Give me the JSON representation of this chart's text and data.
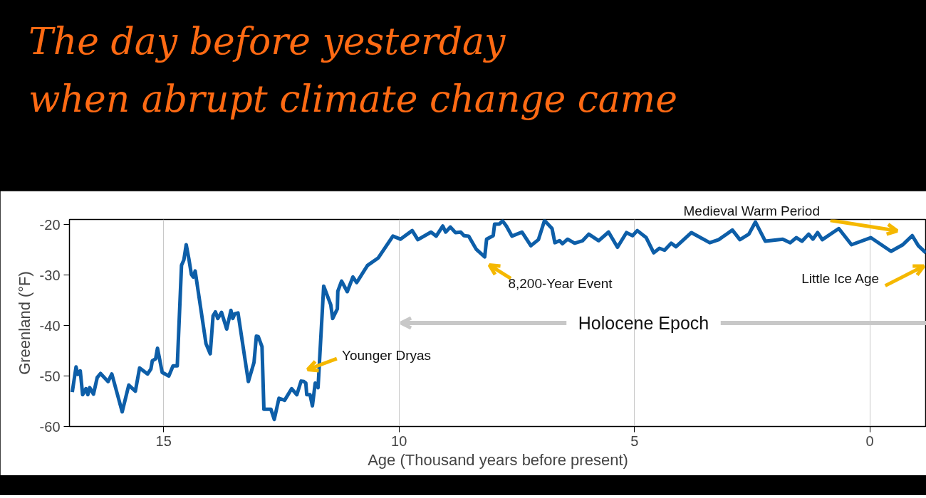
{
  "chart_data": {
    "type": "line",
    "title": "The day before yesterday\nwhen abrupt climate change came",
    "xlabel": "Age (Thousand years before present)",
    "ylabel": "Greenland (°F)",
    "x": [
      16.94,
      16.86,
      16.82,
      16.77,
      16.72,
      16.65,
      16.61,
      16.57,
      16.49,
      16.41,
      16.34,
      16.18,
      16.1,
      15.88,
      15.74,
      15.6,
      15.51,
      15.34,
      15.27,
      15.24,
      15.17,
      15.13,
      15.03,
      14.89,
      14.8,
      14.71,
      14.62,
      14.57,
      14.52,
      14.46,
      14.41,
      14.37,
      14.33,
      14.1,
      14.01,
      13.95,
      13.9,
      13.85,
      13.77,
      13.66,
      13.57,
      13.53,
      13.49,
      13.42,
      13.2,
      13.08,
      13.03,
      12.99,
      12.91,
      12.87,
      12.72,
      12.65,
      12.55,
      12.43,
      12.28,
      12.17,
      12.08,
      12.02,
      11.98,
      11.96,
      11.89,
      11.84,
      11.78,
      11.72,
      11.6,
      11.45,
      11.41,
      11.31,
      11.3,
      11.22,
      11.1,
      10.98,
      10.9,
      10.67,
      10.44,
      10.13,
      9.97,
      9.72,
      9.6,
      9.32,
      9.21,
      9.07,
      9.01,
      8.91,
      8.8,
      8.69,
      8.62,
      8.52,
      8.36,
      8.18,
      8.14,
      8.0,
      7.97,
      7.87,
      7.8,
      7.72,
      7.6,
      7.39,
      7.2,
      7.04,
      6.91,
      6.75,
      6.69,
      6.59,
      6.53,
      6.42,
      6.27,
      6.1,
      5.97,
      5.76,
      5.55,
      5.36,
      5.17,
      5.04,
      4.94,
      4.75,
      4.59,
      4.47,
      4.36,
      4.22,
      4.12,
      3.79,
      3.4,
      3.21,
      2.92,
      2.76,
      2.57,
      2.43,
      2.22,
      1.85,
      1.69,
      1.56,
      1.44,
      1.3,
      1.21,
      1.11,
      1.01,
      0.66,
      0.39,
      -0.02,
      -0.45,
      -0.7,
      -0.9,
      -1.03,
      -1.19
    ],
    "series": [
      {
        "color": "#0d5ea8",
        "values": [
          -53.2,
          -48.2,
          -49.7,
          -49.0,
          -53.7,
          -52.5,
          -53.7,
          -52.3,
          -53.6,
          -50.3,
          -49.5,
          -51.1,
          -49.6,
          -57.1,
          -51.8,
          -53.0,
          -48.4,
          -49.6,
          -48.6,
          -47.0,
          -46.6,
          -44.5,
          -49.3,
          -50.0,
          -48.0,
          -48.0,
          -28.1,
          -27.0,
          -24.0,
          -27.0,
          -29.9,
          -30.4,
          -29.2,
          -43.6,
          -45.6,
          -38.1,
          -37.3,
          -38.6,
          -37.4,
          -40.7,
          -37.0,
          -38.6,
          -37.7,
          -37.5,
          -51.1,
          -47.3,
          -42.1,
          -42.2,
          -44.2,
          -56.6,
          -56.6,
          -58.6,
          -54.4,
          -54.8,
          -52.5,
          -53.7,
          -51.0,
          -51.1,
          -51.4,
          -53.7,
          -53.7,
          -55.9,
          -51.4,
          -52.3,
          -32.2,
          -35.9,
          -38.6,
          -36.7,
          -33.2,
          -31.2,
          -33.3,
          -30.4,
          -31.5,
          -28.1,
          -26.6,
          -22.3,
          -22.9,
          -21.2,
          -23.0,
          -21.5,
          -22.3,
          -20.3,
          -21.5,
          -20.5,
          -21.6,
          -21.5,
          -22.2,
          -22.3,
          -24.9,
          -26.4,
          -22.9,
          -22.2,
          -19.9,
          -19.9,
          -19.3,
          -20.3,
          -22.3,
          -21.5,
          -24.2,
          -23.0,
          -19.2,
          -20.8,
          -23.6,
          -23.2,
          -23.8,
          -22.9,
          -23.7,
          -23.2,
          -21.9,
          -23.2,
          -21.5,
          -24.5,
          -21.6,
          -22.2,
          -21.2,
          -22.6,
          -25.6,
          -24.7,
          -25.1,
          -23.7,
          -24.4,
          -21.6,
          -23.6,
          -23.0,
          -21.1,
          -23.0,
          -21.9,
          -19.5,
          -23.3,
          -22.9,
          -23.6,
          -22.6,
          -23.3,
          -21.9,
          -22.9,
          -21.6,
          -23.0,
          -20.8,
          -24.0,
          -22.6,
          -25.3,
          -24.0,
          -22.2,
          -24.2,
          -25.6
        ]
      }
    ],
    "xlim": [
      17,
      -1.2
    ],
    "xticks": [
      15,
      10,
      5,
      0
    ],
    "ylim": [
      -60,
      -19
    ],
    "yticks": [
      -60,
      -50,
      -40,
      -30,
      -20
    ],
    "grid": "x",
    "annotations": [
      "Younger Dryas",
      "8,200-Year Event",
      "Medieval Warm Period",
      "Little Ice Age",
      "Holocene Epoch"
    ]
  }
}
